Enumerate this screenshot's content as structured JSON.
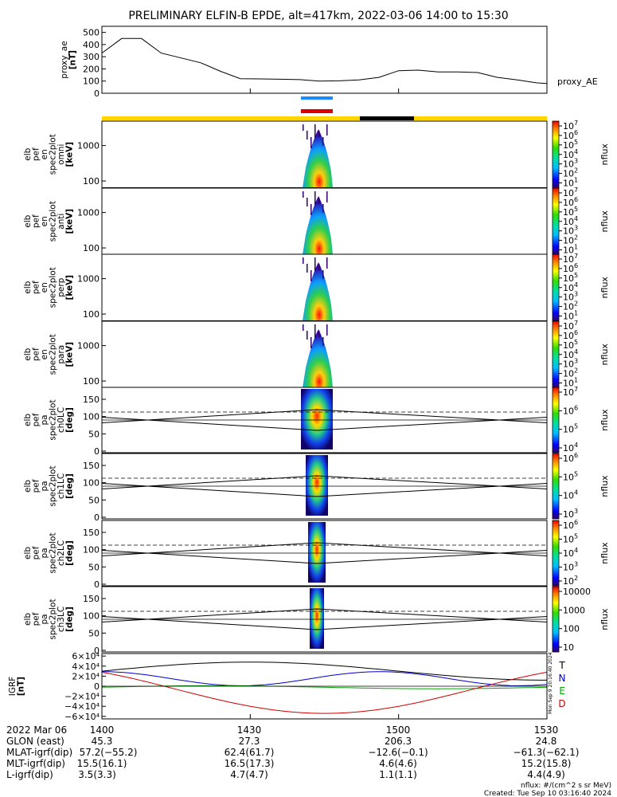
{
  "title": "PRELIMINARY ELFIN-B EPDE, alt=417km, 2022-03-06 14:00 to 15:30",
  "chart_data": [
    {
      "type": "line",
      "name": "proxy_ae",
      "ylabel": [
        "proxy_ae",
        "[nT]"
      ],
      "legend": "proxy_AE",
      "ylim": [
        0,
        550
      ],
      "yticks": [
        "0",
        "100",
        "200",
        "300",
        "400",
        "500"
      ],
      "x_minutes": [
        0,
        4,
        8,
        12,
        16,
        20,
        24,
        28,
        32,
        36,
        40,
        44,
        48,
        52,
        56,
        60,
        64,
        68,
        72,
        76,
        80,
        84,
        88,
        90
      ],
      "values": [
        330,
        450,
        450,
        330,
        290,
        250,
        180,
        120,
        118,
        115,
        112,
        100,
        102,
        110,
        130,
        185,
        190,
        175,
        175,
        170,
        130,
        110,
        85,
        80
      ]
    },
    {
      "type": "heatmap",
      "name": "omni",
      "ylabel": [
        "elb",
        "pef",
        "en",
        "spec2plot",
        "omni",
        "[keV]"
      ],
      "scale": "log",
      "yticks": [
        "100",
        "1000"
      ],
      "colorbar_label": "nflux",
      "colorbar_ticks": [
        "10",
        "10",
        "10",
        "10",
        "10",
        "10",
        "10"
      ],
      "colorbar_exp": [
        "1",
        "2",
        "3",
        "4",
        "5",
        "6",
        "7"
      ]
    },
    {
      "type": "heatmap",
      "name": "anti",
      "ylabel": [
        "elb",
        "pef",
        "en",
        "spec2plot",
        "anti",
        "[keV]"
      ],
      "scale": "log",
      "yticks": [
        "100",
        "1000"
      ],
      "colorbar_label": "nflux",
      "colorbar_ticks": [
        "10",
        "10",
        "10",
        "10",
        "10",
        "10",
        "10"
      ],
      "colorbar_exp": [
        "1",
        "2",
        "3",
        "4",
        "5",
        "6",
        "7"
      ]
    },
    {
      "type": "heatmap",
      "name": "perp",
      "ylabel": [
        "elb",
        "pef",
        "en",
        "spec2plot",
        "perp",
        "[keV]"
      ],
      "scale": "log",
      "yticks": [
        "100",
        "1000"
      ],
      "colorbar_label": "nflux",
      "colorbar_ticks": [
        "10",
        "10",
        "10",
        "10",
        "10",
        "10",
        "10"
      ],
      "colorbar_exp": [
        "1",
        "2",
        "3",
        "4",
        "5",
        "6",
        "7"
      ]
    },
    {
      "type": "heatmap",
      "name": "para",
      "ylabel": [
        "elb",
        "pef",
        "en",
        "spec2plot",
        "para",
        "[keV]"
      ],
      "scale": "log",
      "yticks": [
        "100",
        "1000"
      ],
      "colorbar_label": "nflux",
      "colorbar_ticks": [
        "10",
        "10",
        "10",
        "10",
        "10",
        "10",
        "10"
      ],
      "colorbar_exp": [
        "1",
        "2",
        "3",
        "4",
        "5",
        "6",
        "7"
      ]
    },
    {
      "type": "heatmap",
      "name": "ch0LC",
      "ylabel": [
        "elb",
        "pef",
        "pa",
        "spec2plot",
        "ch0LC",
        "[deg]"
      ],
      "yticks": [
        "0",
        "50",
        "100",
        "150"
      ],
      "colorbar_label": "nflux",
      "colorbar_ticks": [
        "10",
        "10",
        "10",
        "10"
      ],
      "colorbar_exp": [
        "4",
        "5",
        "6",
        "7"
      ]
    },
    {
      "type": "heatmap",
      "name": "ch1LC",
      "ylabel": [
        "elb",
        "pef",
        "pa",
        "spec2plot",
        "ch1LC",
        "[deg]"
      ],
      "yticks": [
        "0",
        "50",
        "100",
        "150"
      ],
      "colorbar_label": "nflux",
      "colorbar_ticks": [
        "10",
        "10",
        "10",
        "10"
      ],
      "colorbar_exp": [
        "3",
        "4",
        "5",
        "6"
      ]
    },
    {
      "type": "heatmap",
      "name": "ch2LC",
      "ylabel": [
        "elb",
        "pef",
        "pa",
        "spec2plot",
        "ch2LC",
        "[deg]"
      ],
      "yticks": [
        "0",
        "50",
        "100",
        "150"
      ],
      "colorbar_label": "nflux",
      "colorbar_ticks": [
        "10",
        "10",
        "10",
        "10",
        "10"
      ],
      "colorbar_exp": [
        "2",
        "3",
        "4",
        "5",
        "6"
      ]
    },
    {
      "type": "heatmap",
      "name": "ch3LC",
      "ylabel": [
        "elb",
        "pef",
        "pa",
        "spec2plot",
        "ch3LC",
        "[deg]"
      ],
      "yticks": [
        "0",
        "50",
        "100",
        "150"
      ],
      "colorbar_label": "nflux",
      "colorbar_ticks": [
        "10",
        "100",
        "1000",
        "10000"
      ],
      "colorbar_exp": []
    },
    {
      "type": "line",
      "name": "igrf",
      "ylabel": [
        "IGRF",
        "[nT]"
      ],
      "yticks": [
        "−6×10⁴",
        "−4×10⁴",
        "−2×10⁴",
        "0",
        "2×10⁴",
        "4×10⁴",
        "6×10⁴"
      ],
      "ylim": [
        -65000,
        65000
      ],
      "legend": [
        "T",
        "N",
        "E",
        "D"
      ],
      "colors": {
        "T": "#000000",
        "N": "#0000cc",
        "E": "#00aa00",
        "D": "#cc0000"
      }
    }
  ],
  "x_axis": {
    "row_labels": [
      "2022 Mar 06",
      "GLON (east)",
      "MLAT-igrf(dip)",
      "MLT-igrf(dip)",
      "L-igrf(dip)"
    ],
    "columns": [
      [
        "1400",
        "45.3",
        "57.2(−55.2)",
        "15.5(16.1)",
        "3.5(3.3)"
      ],
      [
        "1430",
        "27.3",
        "62.4(61.7)",
        "16.5(17.3)",
        "4.7(4.7)"
      ],
      [
        "1500",
        "206.3",
        "−12.6(−0.1)",
        "4.6(4.6)",
        "1.1(1.1)"
      ],
      [
        "1530",
        "24.8",
        "−61.3(−62.1)",
        "15.2(15.8)",
        "4.4(4.9)"
      ]
    ]
  },
  "footer": {
    "units": "nflux: #/(cm^2 s sr MeV)",
    "created": "Created: Tue Sep 10 03:16:40 2024",
    "stamp": "Mon Sep  9 20:16:40 2024"
  },
  "colors": {
    "status_bar": "#ffd400",
    "status_bar_night": "#000000",
    "science_blue": "#1a8cff",
    "science_red": "#dd0000"
  }
}
